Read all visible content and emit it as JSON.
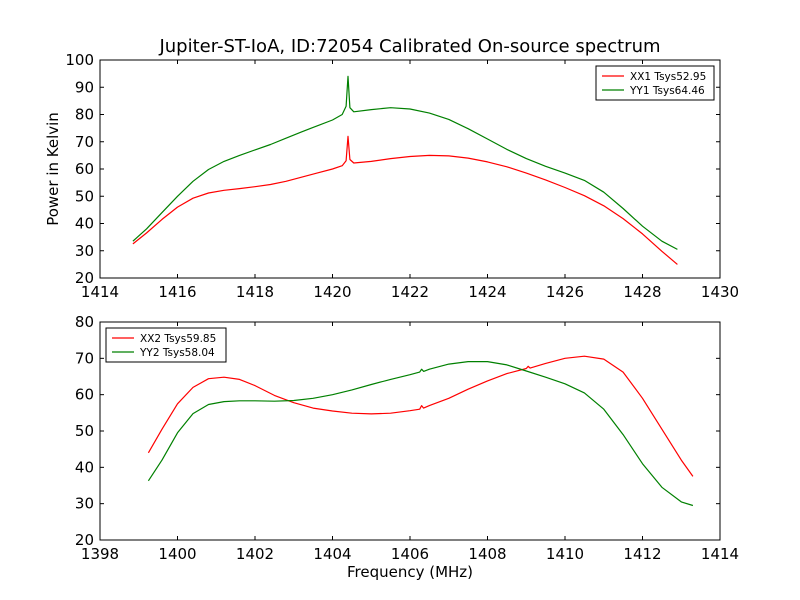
{
  "chart_data": [
    {
      "type": "line",
      "title": "Jupiter-ST-IoA, ID:72054 Calibrated On-source spectrum",
      "xlabel": "",
      "ylabel": "Power in Kelvin",
      "xlim": [
        1414,
        1430
      ],
      "ylim": [
        20,
        100
      ],
      "xticks": [
        1414,
        1416,
        1418,
        1420,
        1422,
        1424,
        1426,
        1428,
        1430
      ],
      "yticks": [
        20,
        30,
        40,
        50,
        60,
        70,
        80,
        90,
        100
      ],
      "grid": false,
      "legend_position": "top-right",
      "series": [
        {
          "name": "XX1 Tsys52.95",
          "color": "#ff0000",
          "x": [
            1414.85,
            1415.2,
            1415.6,
            1416.0,
            1416.4,
            1416.8,
            1417.2,
            1417.6,
            1418.0,
            1418.4,
            1418.8,
            1419.2,
            1419.6,
            1420.0,
            1420.25,
            1420.35,
            1420.4,
            1420.45,
            1420.55,
            1421.0,
            1421.5,
            1422.0,
            1422.5,
            1423.0,
            1423.5,
            1424.0,
            1424.5,
            1425.0,
            1425.5,
            1426.0,
            1426.5,
            1427.0,
            1427.5,
            1428.0,
            1428.5,
            1428.9
          ],
          "y": [
            32.5,
            36.5,
            41.5,
            46.0,
            49.3,
            51.2,
            52.2,
            52.8,
            53.5,
            54.3,
            55.5,
            57.0,
            58.5,
            60.0,
            61.2,
            63.0,
            72.0,
            63.5,
            62.2,
            62.8,
            63.8,
            64.6,
            65.0,
            64.8,
            64.0,
            62.6,
            60.8,
            58.5,
            56.0,
            53.2,
            50.2,
            46.5,
            41.8,
            36.2,
            29.8,
            25.0
          ]
        },
        {
          "name": "YY1 Tsys64.46",
          "color": "#008000",
          "x": [
            1414.85,
            1415.2,
            1415.6,
            1416.0,
            1416.4,
            1416.8,
            1417.2,
            1417.6,
            1418.0,
            1418.4,
            1418.8,
            1419.2,
            1419.6,
            1420.0,
            1420.25,
            1420.35,
            1420.4,
            1420.45,
            1420.55,
            1421.0,
            1421.5,
            1422.0,
            1422.5,
            1423.0,
            1423.5,
            1424.0,
            1424.5,
            1425.0,
            1425.5,
            1426.0,
            1426.5,
            1427.0,
            1427.5,
            1428.0,
            1428.5,
            1428.9
          ],
          "y": [
            33.5,
            38.0,
            44.0,
            50.0,
            55.5,
            59.8,
            62.8,
            65.0,
            67.0,
            69.0,
            71.3,
            73.6,
            75.8,
            78.0,
            80.0,
            83.0,
            94.0,
            82.5,
            81.0,
            81.8,
            82.5,
            82.0,
            80.5,
            78.2,
            74.8,
            71.0,
            67.2,
            63.8,
            61.0,
            58.5,
            55.8,
            51.5,
            45.5,
            39.0,
            33.5,
            30.5
          ]
        }
      ]
    },
    {
      "type": "line",
      "title": "",
      "xlabel": "Frequency (MHz)",
      "ylabel": "",
      "xlim": [
        1398,
        1414
      ],
      "ylim": [
        20,
        80
      ],
      "xticks": [
        1398,
        1400,
        1402,
        1404,
        1406,
        1408,
        1410,
        1412,
        1414
      ],
      "yticks": [
        20,
        30,
        40,
        50,
        60,
        70,
        80
      ],
      "grid": false,
      "legend_position": "top-left",
      "series": [
        {
          "name": "XX2 Tsys59.85",
          "color": "#ff0000",
          "x": [
            1399.25,
            1399.6,
            1400.0,
            1400.4,
            1400.8,
            1401.2,
            1401.6,
            1402.0,
            1402.5,
            1403.0,
            1403.5,
            1404.0,
            1404.5,
            1405.0,
            1405.5,
            1406.0,
            1406.25,
            1406.3,
            1406.35,
            1406.5,
            1407.0,
            1407.5,
            1408.0,
            1408.5,
            1409.0,
            1409.05,
            1409.1,
            1409.5,
            1410.0,
            1410.5,
            1411.0,
            1411.5,
            1412.0,
            1412.5,
            1413.0,
            1413.3
          ],
          "y": [
            44.0,
            50.5,
            57.5,
            62.0,
            64.4,
            64.8,
            64.2,
            62.5,
            59.8,
            57.8,
            56.3,
            55.5,
            54.9,
            54.7,
            54.9,
            55.6,
            56.0,
            57.0,
            56.3,
            57.0,
            59.0,
            61.5,
            63.8,
            65.8,
            67.2,
            67.8,
            67.3,
            68.6,
            70.0,
            70.6,
            69.8,
            66.2,
            59.0,
            50.5,
            42.0,
            37.5
          ]
        },
        {
          "name": "YY2 Tsys58.04",
          "color": "#008000",
          "x": [
            1399.25,
            1399.6,
            1400.0,
            1400.4,
            1400.8,
            1401.2,
            1401.6,
            1402.0,
            1402.5,
            1403.0,
            1403.5,
            1404.0,
            1404.5,
            1405.0,
            1405.5,
            1406.0,
            1406.25,
            1406.3,
            1406.35,
            1406.5,
            1407.0,
            1407.5,
            1408.0,
            1408.5,
            1409.0,
            1409.5,
            1410.0,
            1410.5,
            1411.0,
            1411.5,
            1412.0,
            1412.5,
            1413.0,
            1413.3
          ],
          "y": [
            36.3,
            42.0,
            49.5,
            54.8,
            57.3,
            58.1,
            58.3,
            58.3,
            58.2,
            58.4,
            59.0,
            60.0,
            61.3,
            62.8,
            64.2,
            65.5,
            66.2,
            67.0,
            66.4,
            67.0,
            68.4,
            69.1,
            69.1,
            68.2,
            66.5,
            64.8,
            63.0,
            60.5,
            56.0,
            49.0,
            41.0,
            34.5,
            30.5,
            29.5
          ]
        }
      ]
    }
  ]
}
